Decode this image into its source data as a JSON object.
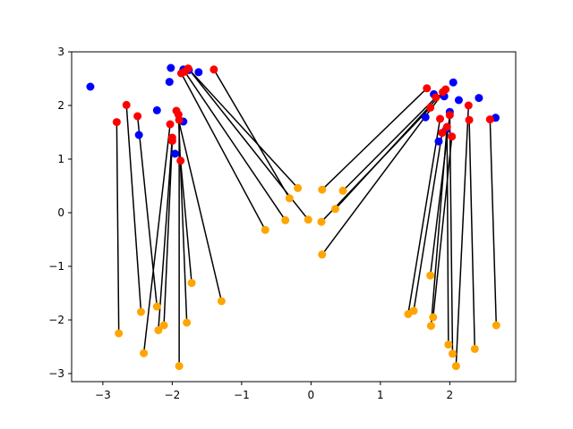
{
  "chart_data": {
    "type": "scatter",
    "title": "",
    "xlabel": "",
    "ylabel": "",
    "xlim": [
      -3.45,
      2.95
    ],
    "ylim": [
      -3.15,
      3.0
    ],
    "xticks": [
      -3,
      -2,
      -1,
      0,
      1,
      2
    ],
    "yticks": [
      -3,
      -2,
      -1,
      0,
      1,
      2,
      3
    ],
    "grid": false,
    "colors": {
      "blue": "#0000ff",
      "red": "#ff0000",
      "orange": "#ffa500",
      "line": "#000000"
    },
    "series": [
      {
        "color": "blue",
        "points": [
          [
            -3.18,
            2.35
          ],
          [
            -2.02,
            2.7
          ],
          [
            -1.84,
            2.67
          ],
          [
            -1.62,
            2.62
          ],
          [
            -2.04,
            2.44
          ],
          [
            -2.22,
            1.91
          ],
          [
            -1.84,
            1.7
          ],
          [
            -2.48,
            1.45
          ],
          [
            -1.96,
            1.1
          ],
          [
            -1.76,
            2.66
          ],
          [
            2.05,
            2.43
          ],
          [
            1.77,
            2.21
          ],
          [
            1.92,
            2.17
          ],
          [
            2.13,
            2.1
          ],
          [
            2.42,
            2.14
          ],
          [
            2.0,
            1.88
          ],
          [
            1.65,
            1.78
          ],
          [
            2.66,
            1.77
          ],
          [
            1.84,
            1.33
          ],
          [
            1.95,
            1.56
          ]
        ]
      },
      {
        "color": "red",
        "points": [
          [
            -2.8,
            1.69
          ],
          [
            -2.66,
            2.01
          ],
          [
            -2.5,
            1.8
          ],
          [
            -2.03,
            1.65
          ],
          [
            -2.0,
            1.4
          ],
          [
            -2.0,
            1.34
          ],
          [
            -1.94,
            1.9
          ],
          [
            -1.91,
            1.83
          ],
          [
            -1.9,
            1.73
          ],
          [
            -1.88,
            0.97
          ],
          [
            -1.87,
            2.6
          ],
          [
            -1.82,
            2.63
          ],
          [
            -1.77,
            2.69
          ],
          [
            -1.4,
            2.67
          ],
          [
            1.67,
            2.32
          ],
          [
            1.72,
            1.96
          ],
          [
            1.8,
            2.15
          ],
          [
            1.86,
            1.75
          ],
          [
            1.89,
            1.49
          ],
          [
            1.9,
            2.25
          ],
          [
            1.94,
            2.3
          ],
          [
            1.96,
            1.6
          ],
          [
            2.0,
            1.82
          ],
          [
            2.03,
            1.42
          ],
          [
            2.27,
            2.0
          ],
          [
            2.28,
            1.73
          ],
          [
            2.58,
            1.74
          ]
        ]
      },
      {
        "color": "orange",
        "points": [
          [
            -2.77,
            -2.25
          ],
          [
            -2.45,
            -1.85
          ],
          [
            -2.41,
            -2.62
          ],
          [
            -2.22,
            -1.75
          ],
          [
            -2.2,
            -2.19
          ],
          [
            -2.12,
            -2.1
          ],
          [
            -1.9,
            -2.86
          ],
          [
            -1.79,
            -2.05
          ],
          [
            -1.72,
            -1.31
          ],
          [
            -1.29,
            -1.65
          ],
          [
            -0.66,
            -0.32
          ],
          [
            -0.37,
            -0.14
          ],
          [
            -0.31,
            0.27
          ],
          [
            -0.19,
            0.46
          ],
          [
            -0.04,
            -0.13
          ],
          [
            0.15,
            -0.17
          ],
          [
            0.16,
            0.43
          ],
          [
            0.16,
            -0.78
          ],
          [
            0.35,
            0.07
          ],
          [
            0.46,
            0.41
          ],
          [
            1.4,
            -1.89
          ],
          [
            1.48,
            -1.83
          ],
          [
            1.72,
            -1.17
          ],
          [
            1.73,
            -2.11
          ],
          [
            1.76,
            -1.95
          ],
          [
            1.98,
            -2.46
          ],
          [
            2.04,
            -2.63
          ],
          [
            2.09,
            -2.86
          ],
          [
            2.36,
            -2.54
          ],
          [
            2.67,
            -2.1
          ]
        ]
      }
    ],
    "segments": [
      [
        [
          -2.8,
          1.69
        ],
        [
          -2.77,
          -2.25
        ]
      ],
      [
        [
          -2.66,
          2.01
        ],
        [
          -2.45,
          -1.85
        ]
      ],
      [
        [
          -2.5,
          1.8
        ],
        [
          -2.22,
          -1.75
        ]
      ],
      [
        [
          -2.03,
          1.65
        ],
        [
          -2.41,
          -2.62
        ]
      ],
      [
        [
          -2.0,
          1.4
        ],
        [
          -2.2,
          -2.19
        ]
      ],
      [
        [
          -2.0,
          1.34
        ],
        [
          -2.12,
          -2.1
        ]
      ],
      [
        [
          -1.94,
          1.9
        ],
        [
          -1.29,
          -1.65
        ]
      ],
      [
        [
          -1.91,
          1.83
        ],
        [
          -1.79,
          -2.05
        ]
      ],
      [
        [
          -1.9,
          1.73
        ],
        [
          -1.9,
          -2.86
        ]
      ],
      [
        [
          -1.88,
          0.97
        ],
        [
          -1.72,
          -1.31
        ]
      ],
      [
        [
          -1.87,
          2.6
        ],
        [
          -0.66,
          -0.32
        ]
      ],
      [
        [
          -1.82,
          2.63
        ],
        [
          -0.37,
          -0.14
        ]
      ],
      [
        [
          -1.77,
          2.69
        ],
        [
          -0.19,
          0.46
        ]
      ],
      [
        [
          -1.4,
          2.67
        ],
        [
          -0.31,
          0.27
        ]
      ],
      [
        [
          -1.77,
          2.69
        ],
        [
          -0.04,
          -0.13
        ]
      ],
      [
        [
          1.67,
          2.32
        ],
        [
          0.16,
          0.43
        ]
      ],
      [
        [
          1.72,
          1.96
        ],
        [
          0.15,
          -0.17
        ]
      ],
      [
        [
          1.8,
          2.15
        ],
        [
          0.46,
          0.41
        ]
      ],
      [
        [
          1.9,
          2.25
        ],
        [
          0.35,
          0.07
        ]
      ],
      [
        [
          1.94,
          2.3
        ],
        [
          0.16,
          -0.78
        ]
      ],
      [
        [
          1.86,
          1.75
        ],
        [
          1.4,
          -1.89
        ]
      ],
      [
        [
          1.89,
          1.49
        ],
        [
          1.48,
          -1.83
        ]
      ],
      [
        [
          1.96,
          1.6
        ],
        [
          1.73,
          -2.11
        ]
      ],
      [
        [
          2.0,
          1.82
        ],
        [
          1.72,
          -1.17
        ]
      ],
      [
        [
          2.03,
          1.42
        ],
        [
          1.76,
          -1.95
        ]
      ],
      [
        [
          1.96,
          1.6
        ],
        [
          1.98,
          -2.46
        ]
      ],
      [
        [
          2.0,
          1.82
        ],
        [
          2.04,
          -2.63
        ]
      ],
      [
        [
          2.27,
          2.0
        ],
        [
          2.09,
          -2.86
        ]
      ],
      [
        [
          2.28,
          1.73
        ],
        [
          2.36,
          -2.54
        ]
      ],
      [
        [
          2.58,
          1.74
        ],
        [
          2.67,
          -2.1
        ]
      ]
    ]
  }
}
